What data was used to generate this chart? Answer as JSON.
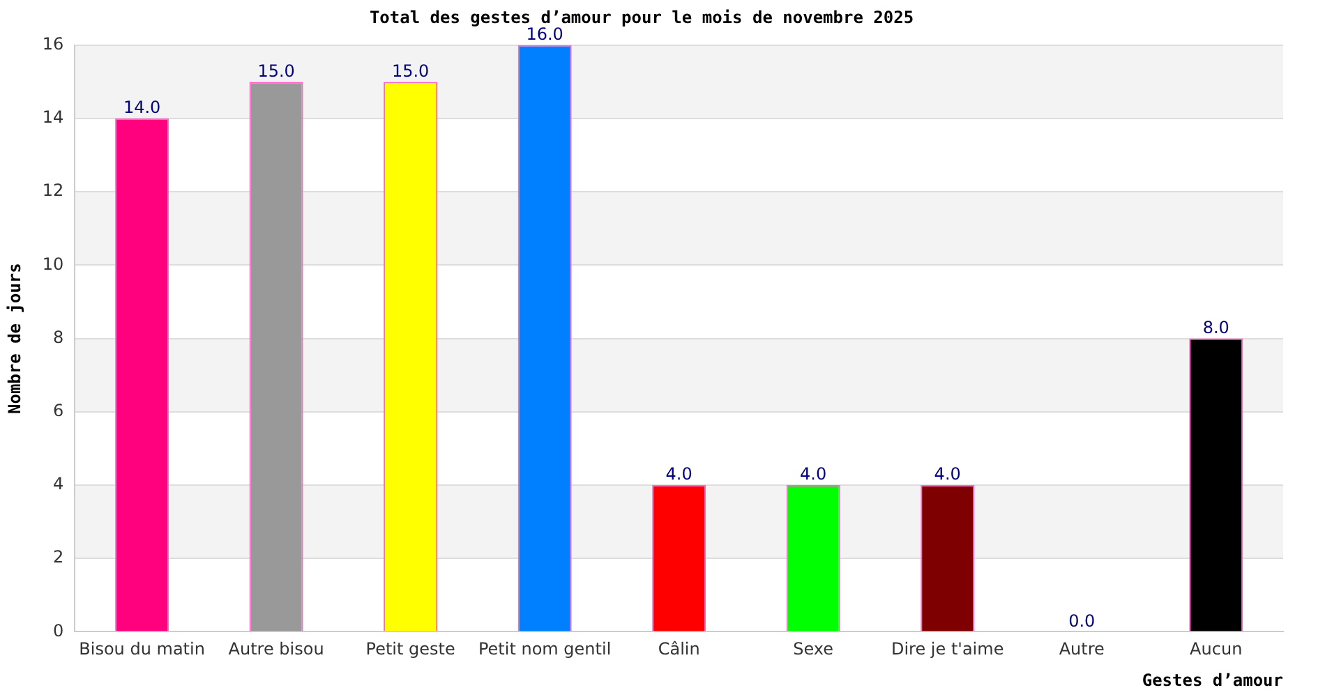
{
  "chart_data": {
    "type": "bar",
    "title": "Total des gestes d’amour pour le mois de novembre 2025",
    "xlabel": "Gestes d’amour",
    "ylabel": "Nombre de jours",
    "categories": [
      "Bisou du matin",
      "Autre bisou",
      "Petit geste",
      "Petit nom gentil",
      "Câlin",
      "Sexe",
      "Dire je t'aime",
      "Autre",
      "Aucun"
    ],
    "values": [
      14,
      15,
      15,
      16,
      4,
      4,
      4,
      0,
      8
    ],
    "colors": [
      "#ff007f",
      "#999999",
      "#ffff00",
      "#007fff",
      "#ff0000",
      "#00ff00",
      "#7f0000",
      "#7f007f",
      "#000000"
    ],
    "value_labels": [
      "14.0",
      "15.0",
      "15.0",
      "16.0",
      "4.0",
      "4.0",
      "4.0",
      "0.0",
      "8.0"
    ],
    "ylim": [
      0,
      16
    ],
    "yticks": [
      0,
      2,
      4,
      6,
      8,
      10,
      12,
      14,
      16
    ],
    "grid": "y",
    "legend": false
  }
}
